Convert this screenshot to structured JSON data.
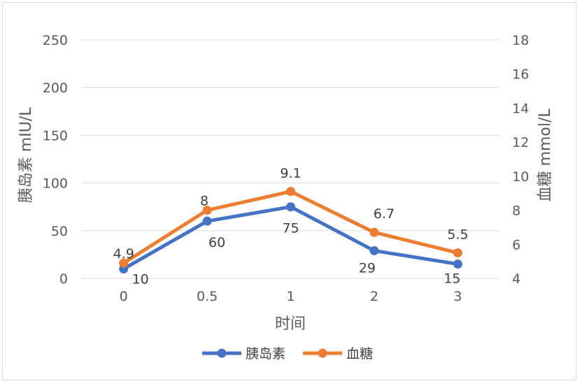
{
  "chart_data": {
    "type": "line",
    "x_title": "时间",
    "y_left_title": "胰岛素 mIU/L",
    "y_right_title": "血糖 mmol/L",
    "categories": [
      "0",
      "0.5",
      "1",
      "2",
      "3"
    ],
    "y_left_ticks": [
      "0",
      "50",
      "100",
      "150",
      "200",
      "250"
    ],
    "y_right_ticks": [
      "4",
      "6",
      "8",
      "10",
      "12",
      "14",
      "16",
      "18"
    ],
    "y_left_range": [
      0,
      250
    ],
    "y_right_range": [
      4,
      18
    ],
    "grid": true,
    "legend_position": "bottom",
    "series": [
      {
        "name": "胰岛素",
        "axis": "left",
        "color": "#4472c4",
        "values": [
          10,
          60,
          75,
          29,
          15
        ],
        "labels": [
          "10",
          "60",
          "75",
          "29",
          "15"
        ]
      },
      {
        "name": "血糖",
        "axis": "right",
        "color": "#ed7d31",
        "values": [
          4.9,
          8,
          9.1,
          6.7,
          5.5
        ],
        "labels": [
          "4.9",
          "8",
          "9.1",
          "6.7",
          "5.5"
        ]
      }
    ]
  }
}
